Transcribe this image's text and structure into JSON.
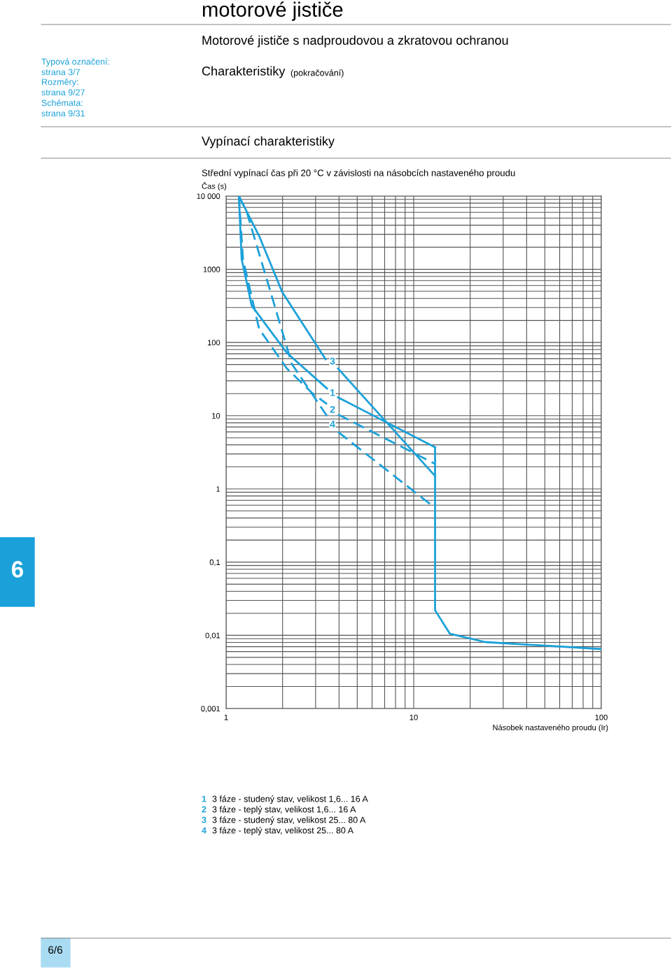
{
  "chart_data": {
    "type": "line",
    "title": "Střední vypínací čas při 20 °C v závislosti na násobcích nastaveného proudu",
    "ylabel": "Čas (s)",
    "xlabel": "Násobek nastaveného proudu (Ir)",
    "log": "xy",
    "grid": true,
    "legend": false,
    "marker": "none",
    "xlim": [
      1,
      100
    ],
    "xticks": [
      1,
      10,
      100
    ],
    "ylim": [
      0.001,
      10000
    ],
    "yticks": [
      {
        "value": 0.001,
        "label": "0,001"
      },
      {
        "value": 0.01,
        "label": "0,01"
      },
      {
        "value": 0.1,
        "label": "0,1"
      },
      1,
      10,
      100,
      1000,
      {
        "value": 10000,
        "label": "10 000"
      }
    ],
    "series": [
      {
        "name": "1",
        "color": "#1ba1d9",
        "line_style": "solid",
        "x": [
          1.17,
          1.21,
          1.37,
          2.11,
          3.45,
          3.7,
          3.95,
          13
        ],
        "values": [
          10000,
          1380,
          318,
          72,
          23.5,
          null,
          17.8,
          3.7
        ]
      },
      {
        "name": "2",
        "color": "#1ba1d9",
        "line_style": "dashed",
        "x": [
          1.17,
          1.23,
          1.5,
          2.11,
          2.9,
          3.45,
          3.7,
          3.95,
          13
        ],
        "values": [
          10000,
          1380,
          153,
          44,
          20,
          14.4,
          null,
          10.4,
          2.2
        ]
      },
      {
        "name": "3",
        "color": "#1ba1d9",
        "line_style": "solid",
        "x": [
          1.17,
          1.5,
          1.99,
          3.39,
          3.7,
          3.95,
          13
        ],
        "values": [
          10000,
          2850,
          490,
          59,
          null,
          44,
          1.5
        ]
      },
      {
        "name": "4",
        "color": "#1ba1d9",
        "line_style": "dashed",
        "x": [
          1.17,
          1.29,
          1.63,
          2.24,
          3.45,
          3.7,
          3.95,
          13
        ],
        "values": [
          10000,
          6000,
          800,
          51,
          9.9,
          null,
          6.0,
          0.55
        ]
      },
      {
        "color": "#1ba1d9",
        "line_style": "solid",
        "x": [
          13,
          13,
          15.6,
          24,
          100
        ],
        "values": [
          3.7,
          0.022,
          0.0105,
          0.0081,
          0.0065
        ]
      }
    ],
    "annotations": [
      "motorové jističe",
      "Motorové jističe s nadproudovou a zkratovou ochranou",
      "Charakteristiky",
      "(pokračování)",
      "Vypínací charakteristiky",
      "Typová označení:",
      "strana 3/7",
      "Rozměry:",
      "strana 9/27",
      "Schémata:",
      "strana 9/31",
      "1  3 fáze - studený stav, velikost 1,6... 16 A",
      "2  3 fáze - teplý stav, velikost 1,6... 16 A",
      "3  3 fáze - studený stav, velikost 25... 80 A",
      "4  3 fáze - teplý stav, velikost 25... 80 A",
      "6",
      "6/6"
    ]
  }
}
